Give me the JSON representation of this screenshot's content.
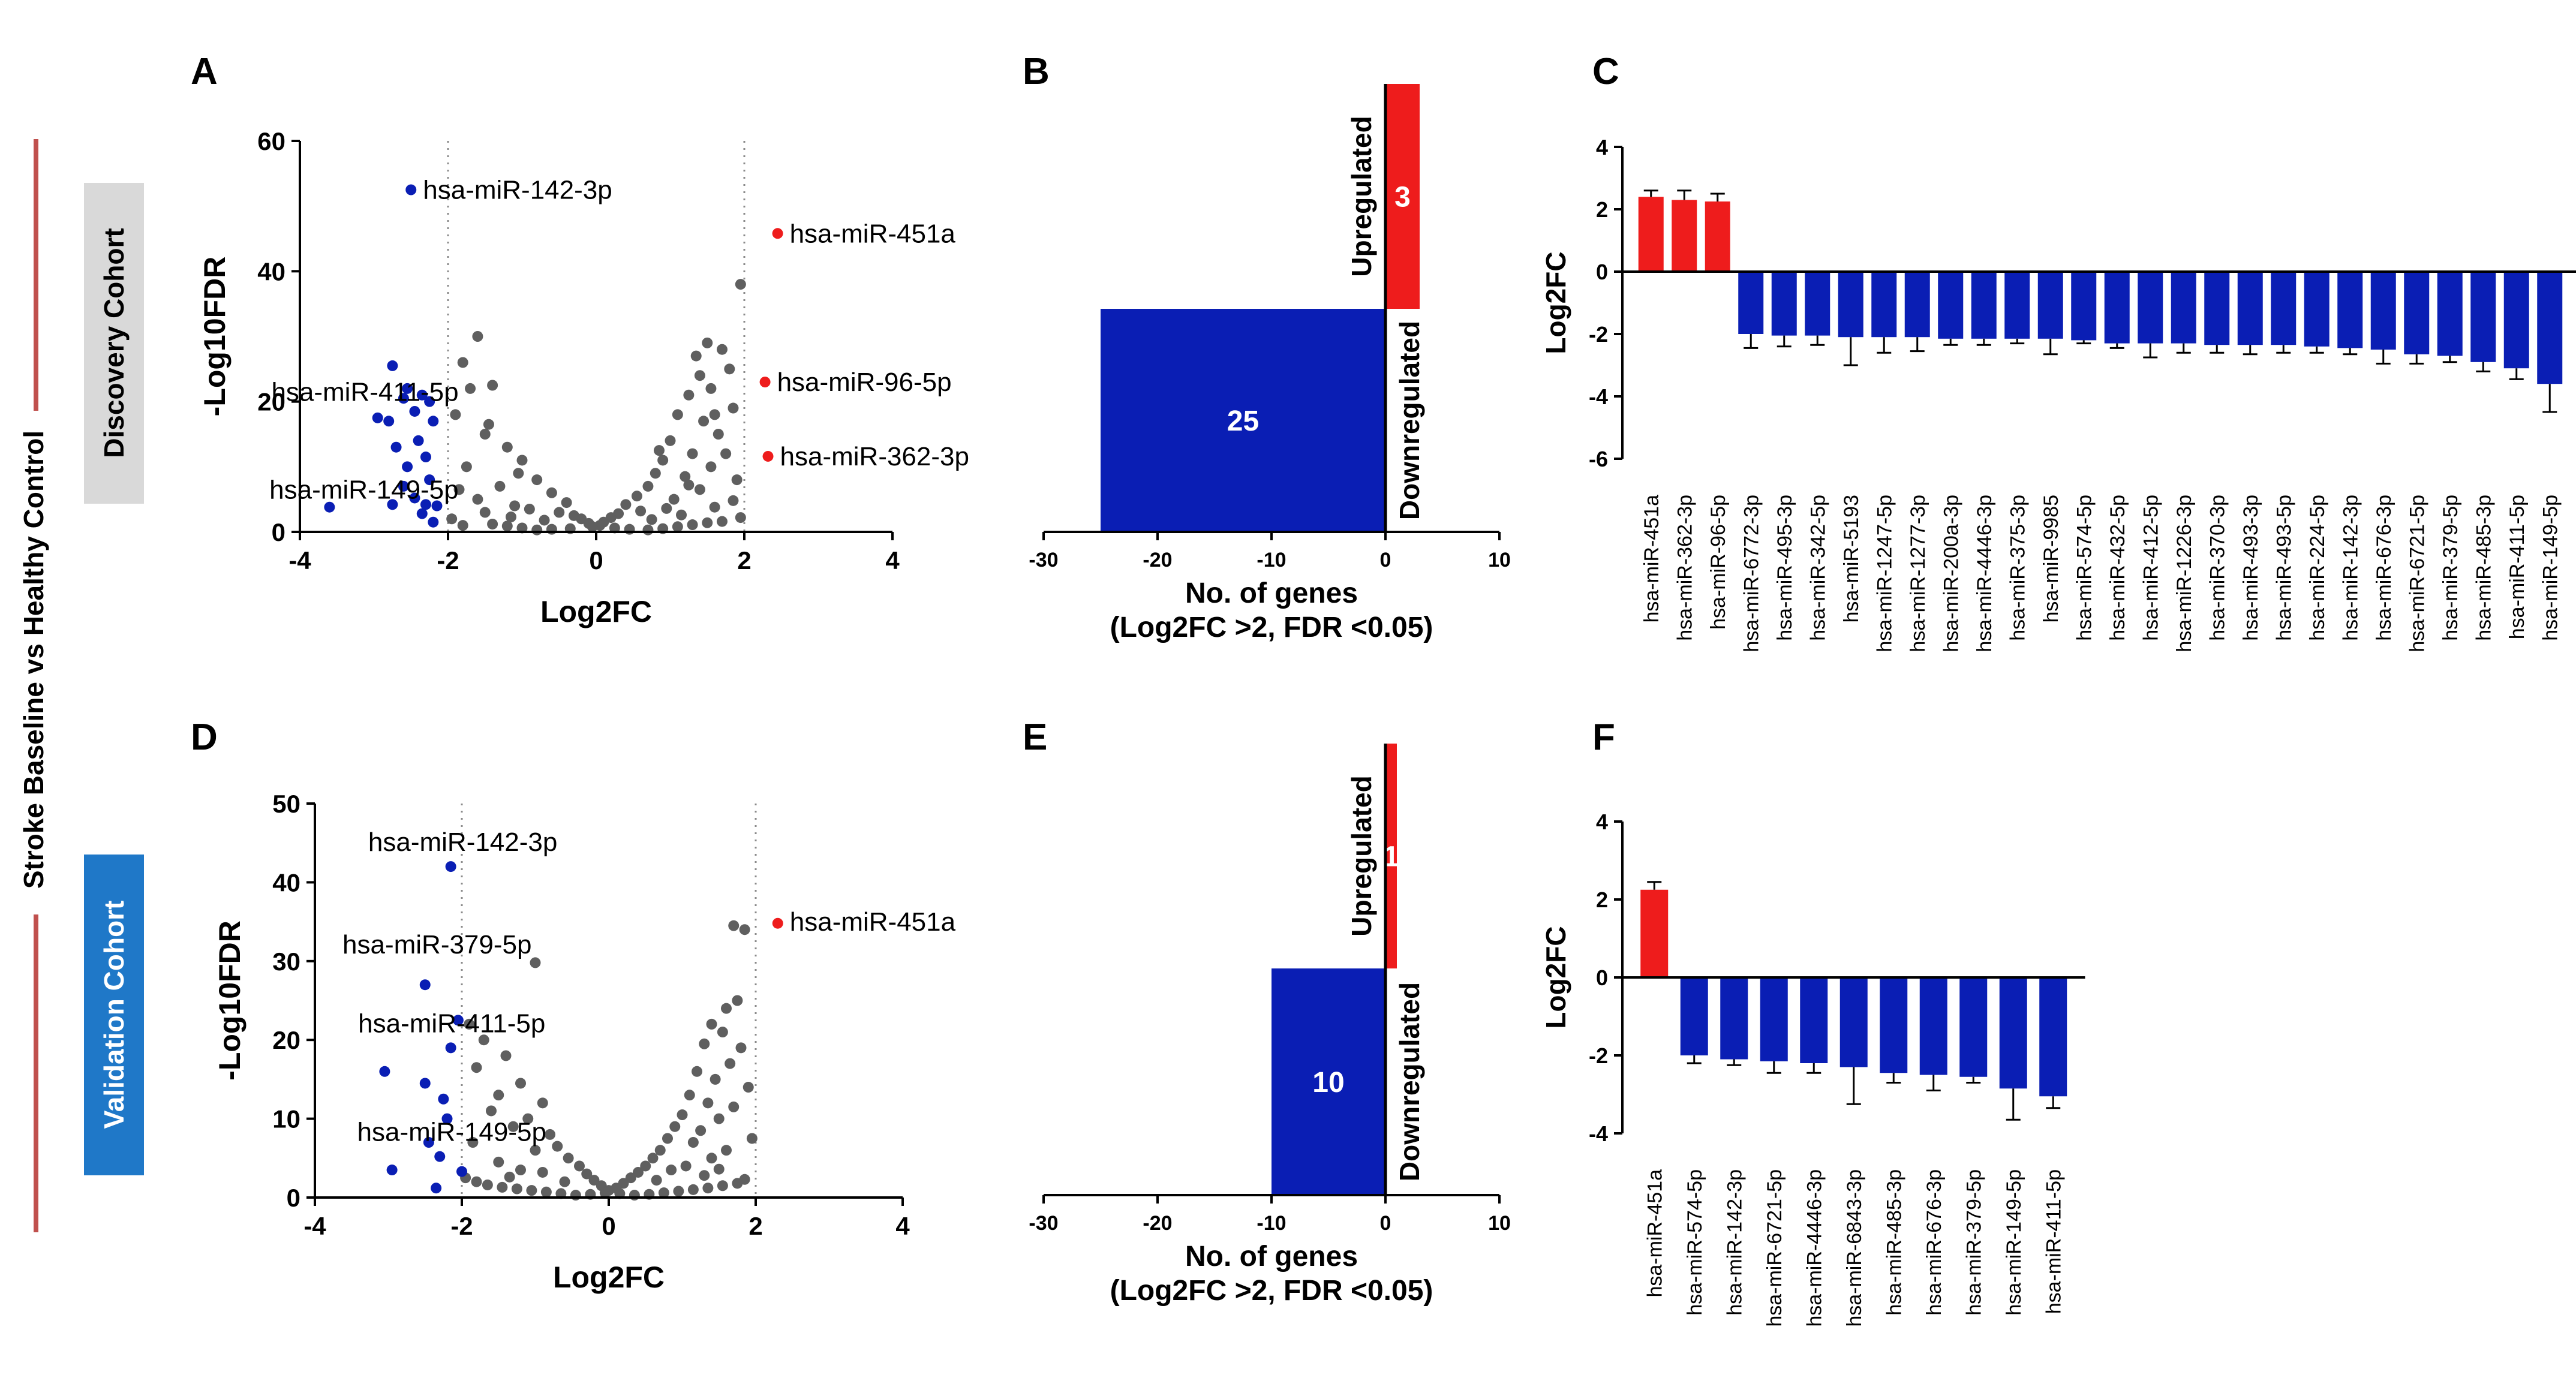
{
  "figure": {
    "side_label": "Stroke Baseline vs Healthy Control",
    "cohort_labels": [
      "Discovery Cohort",
      "Validation Cohort"
    ],
    "panel_letters": [
      "A",
      "B",
      "C",
      "D",
      "E",
      "F"
    ]
  },
  "colors": {
    "up": "#ee1c1c",
    "down": "#0a1eb4",
    "ns": "#5f5f5f",
    "side_bar": "#c0504d",
    "discovery_box": "#d9d9d9",
    "validation_box": "#1f78c8"
  },
  "chart_data": [
    {
      "id": "A",
      "type": "scatter",
      "title": "",
      "xlabel": "Log2FC",
      "ylabel": "-Log10FDR",
      "xlim": [
        -4,
        4
      ],
      "ylim": [
        0,
        60
      ],
      "xticks": [
        "-4",
        "-2",
        "0",
        "2",
        "4"
      ],
      "yticks": [
        "0",
        "20",
        "40",
        "60"
      ],
      "thresholds_x": [
        -2,
        2
      ],
      "labels": [
        {
          "text": "hsa-miR-142-3p",
          "x": -2.5,
          "y": 52.5,
          "side": "right"
        },
        {
          "text": "hsa-miR-451a",
          "x": 2.45,
          "y": 45.8,
          "side": "right"
        },
        {
          "text": "hsa-miR-411-5p",
          "x": -2.1,
          "y": 21.5,
          "side": "left"
        },
        {
          "text": "hsa-miR-96-5p",
          "x": 2.28,
          "y": 23,
          "side": "right"
        },
        {
          "text": "hsa-miR-362-3p",
          "x": 2.32,
          "y": 11.6,
          "side": "right"
        },
        {
          "text": "hsa-miR-149-5p",
          "x": -2.1,
          "y": 6.5,
          "side": "left"
        }
      ],
      "up_points": [
        [
          2.45,
          45.8
        ],
        [
          2.28,
          23
        ],
        [
          2.32,
          11.6
        ]
      ],
      "down_points": [
        [
          -2.5,
          52.5
        ],
        [
          -2.75,
          25.5
        ],
        [
          -2.55,
          22
        ],
        [
          -2.35,
          21
        ],
        [
          -2.25,
          20
        ],
        [
          -2.6,
          20.5
        ],
        [
          -2.45,
          18.5
        ],
        [
          -2.8,
          17
        ],
        [
          -2.95,
          17.5
        ],
        [
          -2.2,
          17
        ],
        [
          -2.4,
          14
        ],
        [
          -2.7,
          13
        ],
        [
          -2.3,
          11.5
        ],
        [
          -2.55,
          10
        ],
        [
          -2.25,
          8
        ],
        [
          -2.6,
          7
        ],
        [
          -2.75,
          4.2
        ],
        [
          -2.3,
          4.2
        ],
        [
          -2.15,
          4
        ],
        [
          -3.6,
          3.8
        ],
        [
          -2.45,
          5.2
        ],
        [
          -2.2,
          1.5
        ],
        [
          -2.35,
          2.8
        ]
      ],
      "ns_points": [
        [
          1.95,
          38
        ],
        [
          -1.6,
          30
        ],
        [
          1.5,
          29
        ],
        [
          -1.8,
          26
        ],
        [
          1.7,
          28
        ],
        [
          1.35,
          27
        ],
        [
          1.8,
          25
        ],
        [
          -1.7,
          22
        ],
        [
          -1.4,
          22.5
        ],
        [
          1.55,
          22
        ],
        [
          1.25,
          21
        ],
        [
          1.85,
          19
        ],
        [
          -1.9,
          18
        ],
        [
          1.1,
          18
        ],
        [
          1.45,
          17
        ],
        [
          -1.5,
          15
        ],
        [
          1.65,
          15
        ],
        [
          1.0,
          14
        ],
        [
          -1.2,
          13
        ],
        [
          1.3,
          12
        ],
        [
          1.75,
          12
        ],
        [
          0.9,
          11
        ],
        [
          -1.0,
          11
        ],
        [
          1.55,
          10
        ],
        [
          -1.75,
          10
        ],
        [
          0.8,
          9
        ],
        [
          1.2,
          8.5
        ],
        [
          -0.8,
          8
        ],
        [
          1.9,
          8
        ],
        [
          -1.3,
          7
        ],
        [
          0.7,
          7
        ],
        [
          1.4,
          6.5
        ],
        [
          -0.6,
          6
        ],
        [
          0.55,
          5.5
        ],
        [
          -1.6,
          5
        ],
        [
          1.05,
          5
        ],
        [
          -0.4,
          4.5
        ],
        [
          0.4,
          4.2
        ],
        [
          -1.1,
          4
        ],
        [
          1.6,
          3.8
        ],
        [
          -0.9,
          3.5
        ],
        [
          0.6,
          3.2
        ],
        [
          -0.5,
          3
        ],
        [
          0.3,
          2.8
        ],
        [
          -0.3,
          2.5
        ],
        [
          0.2,
          2.2
        ],
        [
          -0.2,
          2
        ],
        [
          0.1,
          1.5
        ],
        [
          -0.1,
          1.3
        ],
        [
          0.05,
          1
        ],
        [
          -0.05,
          0.8
        ],
        [
          0.25,
          0.6
        ],
        [
          -0.35,
          0.5
        ],
        [
          0.45,
          0.4
        ],
        [
          -0.6,
          0.4
        ],
        [
          0.7,
          0.3
        ],
        [
          -0.8,
          0.3
        ],
        [
          0.9,
          0.5
        ],
        [
          -1.0,
          0.6
        ],
        [
          1.1,
          0.8
        ],
        [
          -1.2,
          0.9
        ],
        [
          1.3,
          1.1
        ],
        [
          -1.4,
          1.2
        ],
        [
          1.5,
          1.4
        ],
        [
          -1.8,
          1.0
        ],
        [
          1.7,
          1.6
        ],
        [
          -1.95,
          2.0
        ],
        [
          1.95,
          2.2
        ],
        [
          -1.15,
          2.3
        ],
        [
          1.15,
          2.6
        ],
        [
          -0.7,
          1.8
        ],
        [
          0.75,
          1.9
        ],
        [
          -1.5,
          3
        ],
        [
          0.95,
          3.6
        ],
        [
          1.85,
          4.8
        ],
        [
          -1.85,
          6.5
        ],
        [
          1.25,
          7.2
        ],
        [
          -1.05,
          9
        ],
        [
          0.85,
          12.5
        ],
        [
          1.6,
          18
        ],
        [
          -1.45,
          16.5
        ],
        [
          1.4,
          24
        ]
      ]
    },
    {
      "id": "B",
      "type": "bar",
      "title": "",
      "xlabel": "No. of genes",
      "xlabel2": "(Log2FC >2, FDR <0.05)",
      "xlim": [
        -30,
        10
      ],
      "xticks": [
        "-30",
        "-20",
        "-10",
        "0",
        "10"
      ],
      "categories": [
        "Upregulated",
        "Downregulated"
      ],
      "values": [
        3,
        -25
      ],
      "value_labels": [
        "3",
        "25"
      ]
    },
    {
      "id": "C",
      "type": "bar",
      "title": "",
      "xlabel": "",
      "ylabel": "Log2FC",
      "ylim": [
        -6,
        4
      ],
      "yticks": [
        "-6",
        "-4",
        "-2",
        "0",
        "2",
        "4"
      ],
      "categories": [
        "hsa-miR-451a",
        "hsa-miR-362-3p",
        "hsa-miR-96-5p",
        "hsa-miR-6772-3p",
        "hsa-miR-495-3p",
        "hsa-miR-342-5p",
        "hsa-miR-5193",
        "hsa-miR-1247-5p",
        "hsa-miR-1277-3p",
        "hsa-miR-200a-3p",
        "hsa-miR-4446-3p",
        "hsa-miR-375-3p",
        "hsa-miR-9985",
        "hsa-miR-574-5p",
        "hsa-miR-432-5p",
        "hsa-miR-412-5p",
        "hsa-miR-1226-3p",
        "hsa-miR-370-3p",
        "hsa-miR-493-3p",
        "hsa-miR-493-5p",
        "hsa-miR-224-5p",
        "hsa-miR-142-3p",
        "hsa-miR-676-3p",
        "hsa-miR-6721-5p",
        "hsa-miR-379-5p",
        "hsa-miR-485-3p",
        "hsa-miR-411-5p",
        "hsa-miR-149-5p"
      ],
      "values": [
        2.4,
        2.3,
        2.25,
        -2.0,
        -2.05,
        -2.05,
        -2.1,
        -2.1,
        -2.1,
        -2.15,
        -2.15,
        -2.15,
        -2.15,
        -2.2,
        -2.3,
        -2.3,
        -2.3,
        -2.35,
        -2.35,
        -2.35,
        -2.4,
        -2.45,
        -2.5,
        -2.65,
        -2.7,
        -2.9,
        -3.1,
        -3.6
      ],
      "errors": [
        0.2,
        0.3,
        0.25,
        0.45,
        0.35,
        0.3,
        0.9,
        0.5,
        0.45,
        0.2,
        0.2,
        0.15,
        0.5,
        0.1,
        0.15,
        0.45,
        0.3,
        0.25,
        0.3,
        0.25,
        0.2,
        0.2,
        0.45,
        0.3,
        0.2,
        0.3,
        0.35,
        0.9
      ]
    },
    {
      "id": "D",
      "type": "scatter",
      "title": "",
      "xlabel": "Log2FC",
      "ylabel": "-Log10FDR",
      "xlim": [
        -4,
        4
      ],
      "ylim": [
        0,
        50
      ],
      "xticks": [
        "-4",
        "-2",
        "0",
        "2",
        "4"
      ],
      "yticks": [
        "0",
        "10",
        "20",
        "30",
        "40",
        "50"
      ],
      "thresholds_x": [
        -2,
        2
      ],
      "labels": [
        {
          "text": "hsa-miR-142-3p",
          "x": -2.15,
          "y": 42,
          "side": "above"
        },
        {
          "text": "hsa-miR-451a",
          "x": 2.3,
          "y": 35,
          "side": "right"
        },
        {
          "text": "hsa-miR-379-5p",
          "x": -2.5,
          "y": 29,
          "side": "above"
        },
        {
          "text": "hsa-miR-411-5p",
          "x": -2.3,
          "y": 19,
          "side": "above"
        },
        {
          "text": "hsa-miR-149-5p",
          "x": -2.3,
          "y": 5.2,
          "side": "above"
        }
      ],
      "up_points": [
        [
          2.3,
          34.8
        ]
      ],
      "down_points": [
        [
          -2.15,
          42
        ],
        [
          -2.5,
          27
        ],
        [
          -2.05,
          22.5
        ],
        [
          -2.15,
          19
        ],
        [
          -3.05,
          16
        ],
        [
          -2.5,
          14.5
        ],
        [
          -2.25,
          12.5
        ],
        [
          -2.2,
          10
        ],
        [
          -2.45,
          7
        ],
        [
          -2.3,
          5.2
        ],
        [
          -2.95,
          3.5
        ],
        [
          -2.35,
          1.2
        ],
        [
          -2.0,
          3.3
        ]
      ],
      "ns_points": [
        [
          1.7,
          34.5
        ],
        [
          1.85,
          34
        ],
        [
          -1.0,
          29.8
        ],
        [
          1.75,
          25
        ],
        [
          1.6,
          24
        ],
        [
          -1.9,
          22
        ],
        [
          1.4,
          22
        ],
        [
          -1.7,
          20
        ],
        [
          1.55,
          21
        ],
        [
          1.8,
          19
        ],
        [
          -1.4,
          18
        ],
        [
          1.3,
          19.5
        ],
        [
          1.65,
          17
        ],
        [
          -1.8,
          16.5
        ],
        [
          1.2,
          16
        ],
        [
          1.45,
          15
        ],
        [
          -1.2,
          14.5
        ],
        [
          1.9,
          14
        ],
        [
          -1.5,
          13
        ],
        [
          1.1,
          13
        ],
        [
          1.35,
          12
        ],
        [
          -0.9,
          12
        ],
        [
          1.7,
          11.5
        ],
        [
          -1.6,
          11
        ],
        [
          1.0,
          10.5
        ],
        [
          1.5,
          10
        ],
        [
          -1.1,
          10
        ],
        [
          0.9,
          9
        ],
        [
          -1.3,
          9
        ],
        [
          1.25,
          8.5
        ],
        [
          -0.8,
          8
        ],
        [
          1.95,
          7.5
        ],
        [
          0.8,
          7.5
        ],
        [
          -1.85,
          7
        ],
        [
          1.15,
          7
        ],
        [
          -0.7,
          6.5
        ],
        [
          0.7,
          6
        ],
        [
          1.6,
          6
        ],
        [
          -1.0,
          6
        ],
        [
          0.6,
          5
        ],
        [
          -0.55,
          5
        ],
        [
          1.4,
          5
        ],
        [
          -1.5,
          4.5
        ],
        [
          0.5,
          4
        ],
        [
          -0.4,
          4
        ],
        [
          1.05,
          4
        ],
        [
          -1.2,
          3.5
        ],
        [
          0.4,
          3.2
        ],
        [
          -0.3,
          3
        ],
        [
          0.3,
          2.5
        ],
        [
          -0.2,
          2.2
        ],
        [
          0.2,
          1.8
        ],
        [
          -0.1,
          1.5
        ],
        [
          0.1,
          1.2
        ],
        [
          0.0,
          0.9
        ],
        [
          -0.05,
          0.6
        ],
        [
          0.15,
          0.5
        ],
        [
          -0.25,
          0.4
        ],
        [
          0.35,
          0.3
        ],
        [
          -0.45,
          0.3
        ],
        [
          0.55,
          0.4
        ],
        [
          -0.65,
          0.5
        ],
        [
          0.75,
          0.6
        ],
        [
          -0.85,
          0.7
        ],
        [
          0.95,
          0.8
        ],
        [
          -1.05,
          0.9
        ],
        [
          1.15,
          1.0
        ],
        [
          -1.25,
          1.1
        ],
        [
          1.35,
          1.2
        ],
        [
          -1.45,
          1.3
        ],
        [
          1.55,
          1.5
        ],
        [
          -1.65,
          1.6
        ],
        [
          1.75,
          1.8
        ],
        [
          -1.8,
          2.0
        ],
        [
          1.85,
          2.3
        ],
        [
          -1.95,
          2.5
        ],
        [
          -0.6,
          2.0
        ],
        [
          0.65,
          2.2
        ],
        [
          -0.9,
          3.2
        ],
        [
          0.85,
          3.5
        ],
        [
          1.3,
          2.8
        ],
        [
          -1.35,
          2.6
        ],
        [
          1.5,
          3.6
        ]
      ]
    },
    {
      "id": "E",
      "type": "bar",
      "title": "",
      "xlabel": "No. of genes",
      "xlabel2": "(Log2FC >2, FDR <0.05)",
      "xlim": [
        -30,
        10
      ],
      "xticks": [
        "-30",
        "-20",
        "-10",
        "0",
        "10"
      ],
      "categories": [
        "Upregulated",
        "Downregulated"
      ],
      "values": [
        1,
        -10
      ],
      "value_labels": [
        "1",
        "10"
      ]
    },
    {
      "id": "F",
      "type": "bar",
      "title": "",
      "xlabel": "",
      "ylabel": "Log2FC",
      "ylim": [
        -4,
        4
      ],
      "yticks": [
        "-4",
        "-2",
        "0",
        "2",
        "4"
      ],
      "categories": [
        "hsa-miR-451a",
        "hsa-miR-574-5p",
        "hsa-miR-142-3p",
        "hsa-miR-6721-5p",
        "hsa-miR-4446-3p",
        "hsa-miR-6843-3p",
        "hsa-miR-485-3p",
        "hsa-miR-676-3p",
        "hsa-miR-379-5p",
        "hsa-miR-149-5p",
        "hsa-miR-411-5p"
      ],
      "values": [
        2.25,
        -2.0,
        -2.1,
        -2.15,
        -2.2,
        -2.3,
        -2.45,
        -2.5,
        -2.55,
        -2.85,
        -3.05
      ],
      "errors": [
        0.2,
        0.2,
        0.15,
        0.3,
        0.25,
        0.95,
        0.25,
        0.4,
        0.15,
        0.8,
        0.3
      ]
    }
  ]
}
